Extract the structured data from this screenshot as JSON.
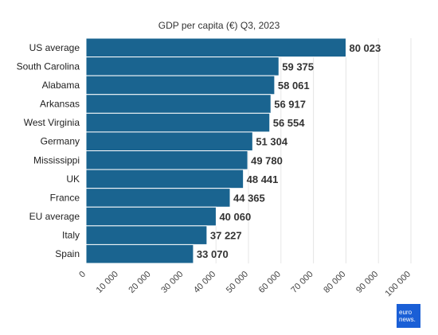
{
  "chart_data": {
    "type": "bar",
    "orientation": "horizontal",
    "title": "GDP per capita (€) Q3, 2023",
    "xlabel": "",
    "ylabel": "",
    "categories": [
      "US average",
      "South Carolina",
      "Alabama",
      "Arkansas",
      "West Virginia",
      "Germany",
      "Mississippi",
      "UK",
      "France",
      "EU average",
      "Italy",
      "Spain"
    ],
    "values": [
      80023,
      59375,
      58061,
      56917,
      56554,
      51304,
      49780,
      48441,
      44365,
      40060,
      37227,
      33070
    ],
    "value_labels": [
      "80 023",
      "59 375",
      "58 061",
      "56 917",
      "56 554",
      "51 304",
      "49 780",
      "48 441",
      "44 365",
      "40 060",
      "37 227",
      "33 070"
    ],
    "xlim": [
      0,
      100000
    ],
    "xticks": [
      0,
      10000,
      20000,
      30000,
      40000,
      50000,
      60000,
      70000,
      80000,
      90000,
      100000
    ],
    "xtick_labels": [
      "0",
      "10 000",
      "20 000",
      "30 000",
      "40 000",
      "50 000",
      "60 000",
      "70 000",
      "80 000",
      "90 000",
      "100 000"
    ],
    "grid": true,
    "bar_color": "#1a6490"
  },
  "logo": {
    "line1": "euro",
    "line2": "news.",
    "color": "#1a5fd6"
  }
}
